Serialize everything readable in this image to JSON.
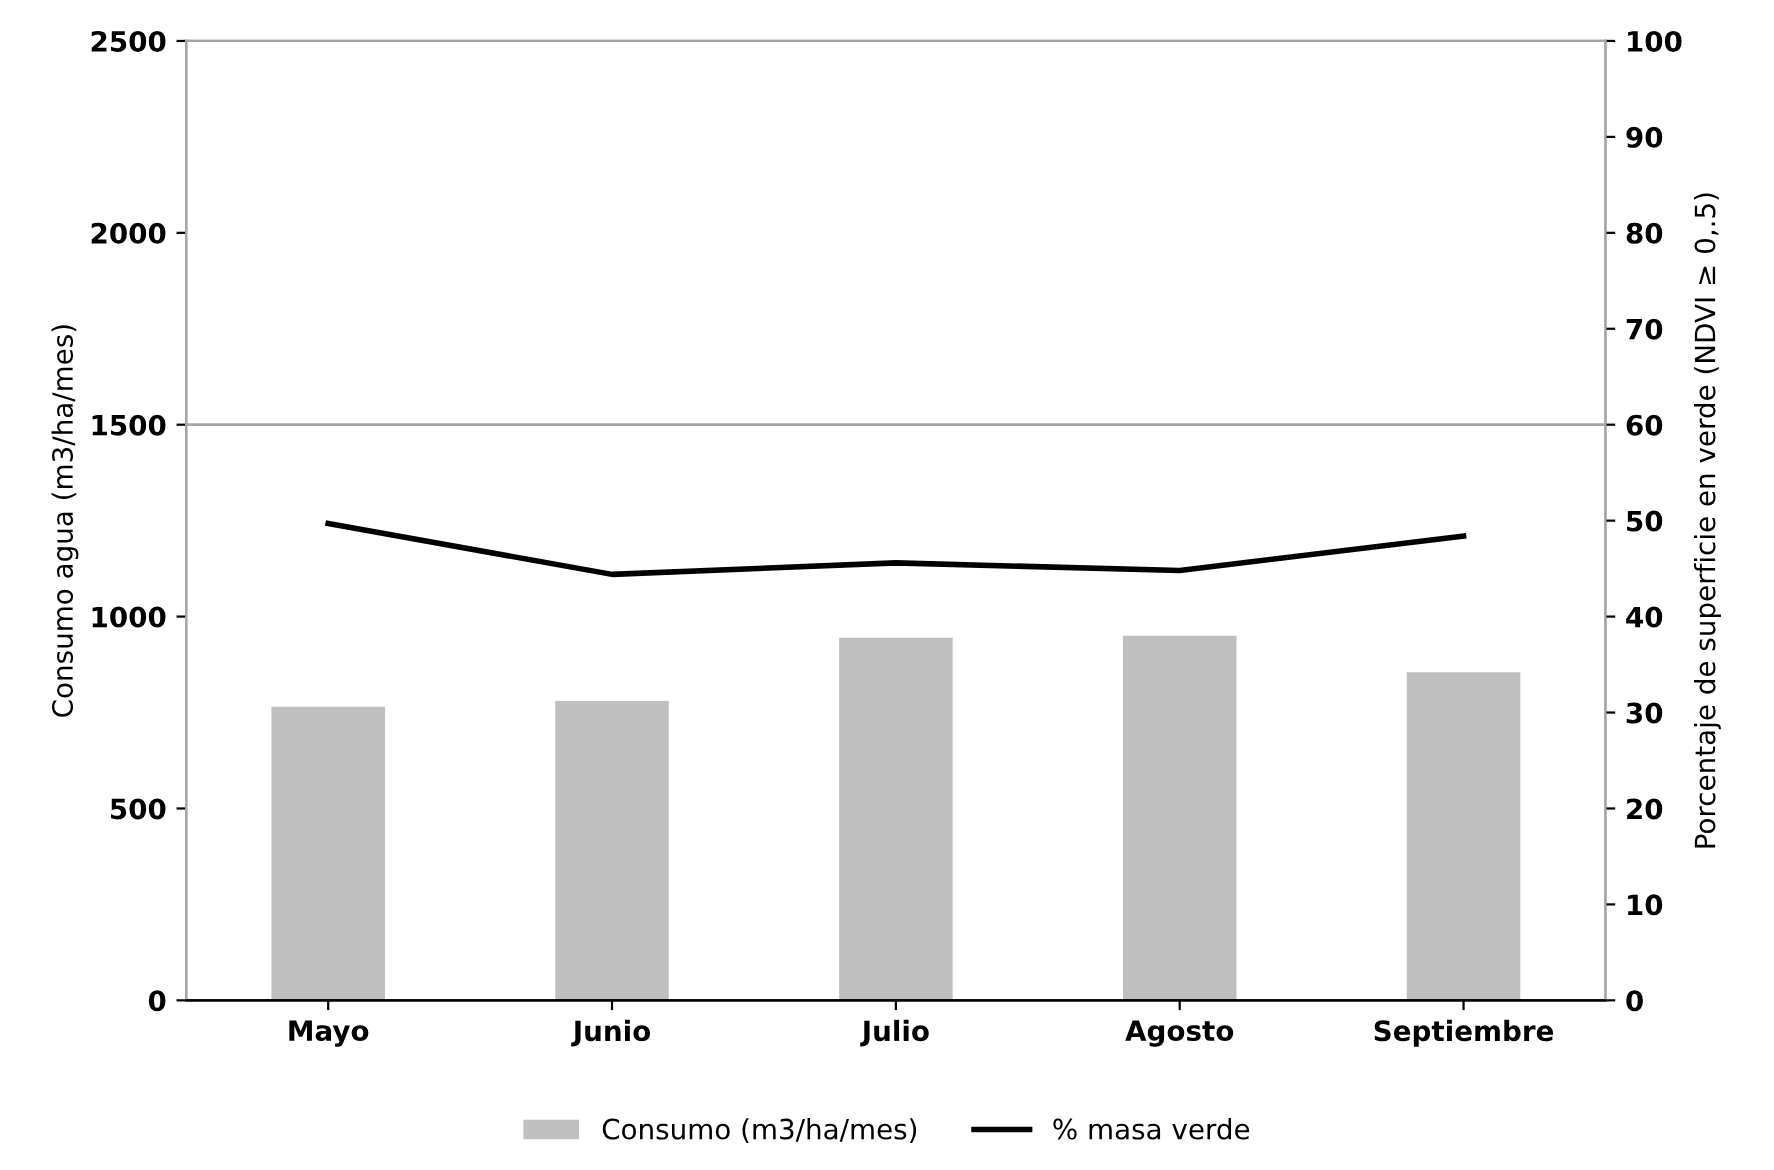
{
  "chart_data": {
    "type": "bar",
    "categories": [
      "Mayo",
      "Junio",
      "Julio",
      "Agosto",
      "Septiembre"
    ],
    "ylabel": "Consumo agua (m3/ha/mes)",
    "y2label": "Porcentaje de superficie en verde (NDVI ≥ 0,.5)",
    "series": [
      {
        "name": "Consumo (m3/ha/mes)",
        "color": "#bfbfbf",
        "values": [
          765,
          780,
          945,
          950,
          855
        ]
      },
      {
        "name": "% masa verde",
        "type": "line",
        "axis": "y2",
        "color": "#000000",
        "values": [
          49.7,
          44.4,
          45.6,
          44.8,
          48.4
        ]
      }
    ],
    "ylim": [
      0,
      2500
    ],
    "yticks": [
      0,
      500,
      1000,
      1500,
      2000,
      2500
    ],
    "y2lim": [
      0,
      100
    ],
    "y2ticks": [
      0,
      10,
      20,
      30,
      40,
      50,
      60,
      70,
      80,
      90,
      100
    ],
    "ref_lines": [
      {
        "axis": "y",
        "value": 1500,
        "color": "#a6a6a6"
      }
    ],
    "legend": "bottom",
    "marker": "none",
    "line_style": "solid"
  }
}
